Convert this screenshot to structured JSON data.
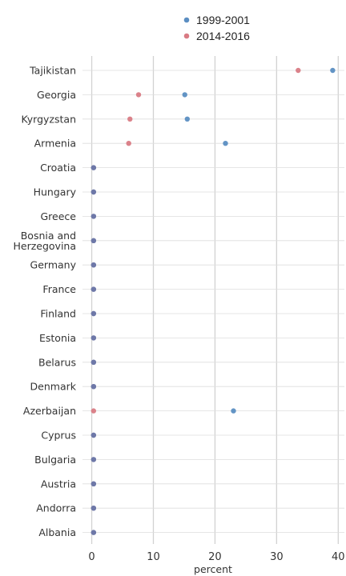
{
  "chart_data": {
    "type": "scatter",
    "title": "",
    "xlabel": "percent",
    "ylabel": "",
    "xlim": [
      -1.5,
      41
    ],
    "x_ticks": [
      0,
      10,
      20,
      30,
      40
    ],
    "x_tick_labels": [
      "0",
      "10",
      "20",
      "30",
      "40"
    ],
    "grid": true,
    "legend_position": "top",
    "categories": [
      "Tajikistan",
      "Georgia",
      "Kyrgyzstan",
      "Armenia",
      "Croatia",
      "Hungary",
      "Greece",
      "Bosnia and Herzegovina",
      "Germany",
      "France",
      "Finland",
      "Estonia",
      "Belarus",
      "Denmark",
      "Azerbaijan",
      "Cyprus",
      "Bulgaria",
      "Austria",
      "Andorra",
      "Albania"
    ],
    "category_label_lines": [
      [
        "Tajikistan"
      ],
      [
        "Georgia"
      ],
      [
        "Kyrgyzstan"
      ],
      [
        "Armenia"
      ],
      [
        "Croatia"
      ],
      [
        "Hungary"
      ],
      [
        "Greece"
      ],
      [
        "Bosnia and",
        "Herzegovina"
      ],
      [
        "Germany"
      ],
      [
        "France"
      ],
      [
        "Finland"
      ],
      [
        "Estonia"
      ],
      [
        "Belarus"
      ],
      [
        "Denmark"
      ],
      [
        "Azerbaijan"
      ],
      [
        "Cyprus"
      ],
      [
        "Bulgaria"
      ],
      [
        "Austria"
      ],
      [
        "Andorra"
      ],
      [
        "Albania"
      ]
    ],
    "series": [
      {
        "name": "1999-2001",
        "color": "#5b8ec2",
        "values": [
          39.1,
          15.1,
          15.5,
          21.7,
          0.3,
          0.3,
          0.3,
          0.3,
          0.3,
          0.3,
          0.3,
          0.3,
          0.3,
          0.3,
          23.0,
          0.3,
          0.3,
          0.3,
          0.3,
          0.3
        ]
      },
      {
        "name": "2014-2016",
        "color": "#d97b84",
        "values": [
          33.5,
          7.6,
          6.2,
          6.0,
          0.3,
          0.3,
          0.3,
          0.3,
          0.3,
          0.3,
          0.3,
          0.3,
          0.3,
          0.3,
          0.3,
          0.3,
          0.3,
          0.3,
          0.3,
          0.3
        ]
      }
    ],
    "overlap_color": "#6e78a8"
  }
}
